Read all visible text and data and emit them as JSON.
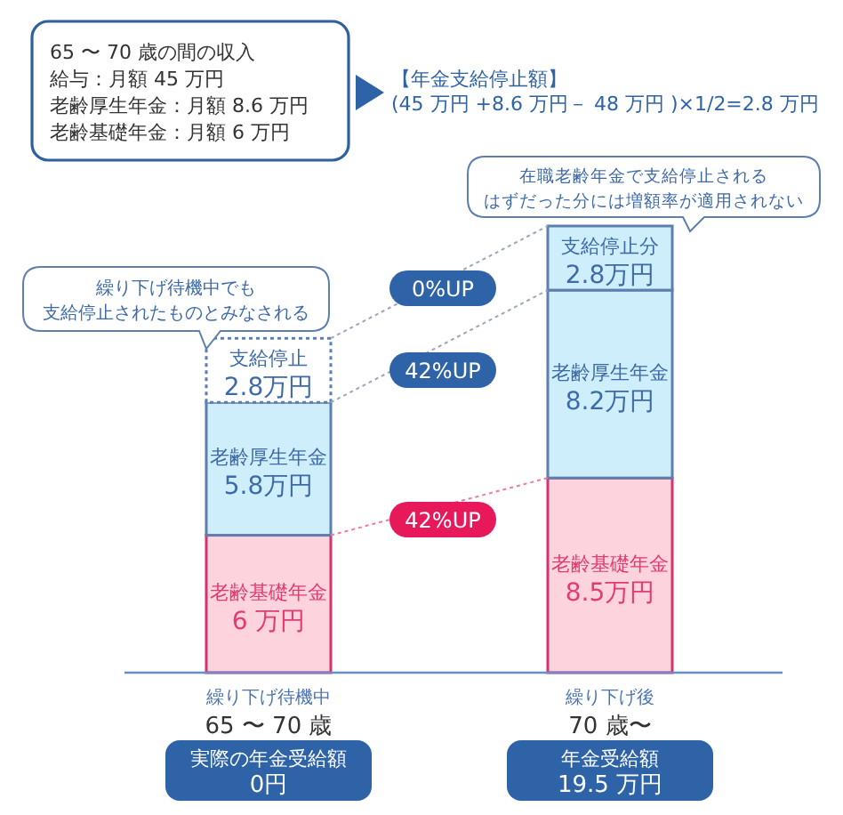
{
  "chart_data": {
    "type": "bar",
    "stacked": true,
    "categories": [
      "繰り下げ待機中\n65 〜 70 歳",
      "繰り下げ後\n70 歳〜"
    ],
    "series": [
      {
        "color": "#fdd3de",
        "values": [
          6,
          8.5
        ],
        "value_labels": [
          "老齢基礎年金\n6 万円",
          "老齢基礎年金\n8.5万円"
        ]
      },
      {
        "color": "#cdeefa",
        "values": [
          5.8,
          8.2
        ],
        "value_labels": [
          "老齢厚生年金\n5.8万円",
          "老齢厚生年金\n8.2万円"
        ]
      },
      {
        "colors": [
          "#ffffff",
          "#cdeefa"
        ],
        "values": [
          2.8,
          2.8
        ],
        "value_labels": [
          "支給停止\n2.8万円",
          "支給停止分\n2.8万円"
        ]
      }
    ],
    "annotations": [
      "65 〜 70 歳の間の収入",
      "給与：月額 45 万円",
      "老齢厚生年金：月額 8.6 万円",
      "老齢基礎年金：月額 6 万円",
      "【年金支給停止額】",
      "(45 万円 +8.6 万円－ 48 万円 )×1/2=2.8 万円",
      "在職老齢年金で支給停止される",
      "はずだった分には増額率が適用されない",
      "繰り下げ待機中でも",
      "支給停止されたものとみなされる",
      "0%UP",
      "42%UP",
      "42%UP",
      "実際の年金受給額\n0円",
      "年金受給額\n19.5 万円"
    ]
  }
}
